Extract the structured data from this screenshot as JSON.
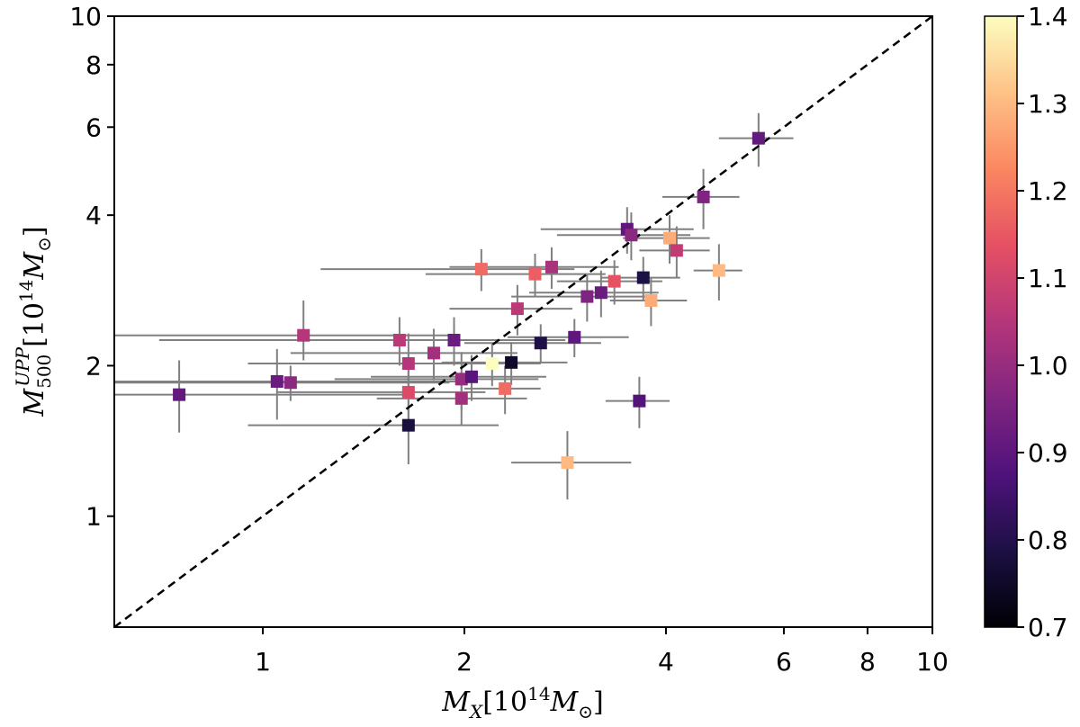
{
  "chart_data": {
    "type": "scatter",
    "xscale": "log",
    "yscale": "log",
    "xlim": [
      0.6,
      10
    ],
    "ylim": [
      0.6,
      10
    ],
    "x_ticks": [
      {
        "value": 1,
        "label": "1"
      },
      {
        "value": 2,
        "label": "2"
      },
      {
        "value": 4,
        "label": "4"
      },
      {
        "value": 6,
        "label": "6"
      },
      {
        "value": 8,
        "label": "8"
      },
      {
        "value": 10,
        "label": "10"
      }
    ],
    "y_ticks": [
      {
        "value": 1,
        "label": "1"
      },
      {
        "value": 2,
        "label": "2"
      },
      {
        "value": 4,
        "label": "4"
      },
      {
        "value": 6,
        "label": "6"
      },
      {
        "value": 8,
        "label": "8"
      },
      {
        "value": 10,
        "label": "10"
      }
    ],
    "xlabel_main": "M",
    "xlabel_sub": "X",
    "xlabel_rest": "[10",
    "xlabel_exp": "14",
    "xlabel_unit": "M",
    "xlabel_unit_sub": "⊙",
    "xlabel_close": "]",
    "ylabel_main": "M",
    "ylabel_sub": "500",
    "ylabel_sup": "UPP",
    "ylabel_rest": "[10",
    "ylabel_exp": "14",
    "ylabel_unit": "M",
    "ylabel_unit_sub": "⊙",
    "ylabel_close": "]",
    "diagonal": {
      "style": "dashed",
      "color": "#000000",
      "label": "1:1"
    },
    "colorbar": {
      "min": 0.7,
      "max": 1.4,
      "colormap": "magma",
      "ticks": [
        "0.7",
        "0.8",
        "0.9",
        "1.0",
        "1.1",
        "1.2",
        "1.3",
        "1.4"
      ]
    },
    "marker_color_errorbar": "#808080",
    "points": [
      {
        "x": 0.75,
        "y": 1.75,
        "xerr": [
          0.15,
          0.9
        ],
        "yerr": [
          0.28,
          0.3
        ],
        "c": 0.91
      },
      {
        "x": 1.05,
        "y": 1.86,
        "xerr": [
          0.5,
          0.9
        ],
        "yerr": [
          0.3,
          0.3
        ],
        "c": 0.92
      },
      {
        "x": 1.1,
        "y": 1.85,
        "xerr": [
          0.5,
          0.8
        ],
        "yerr": [
          0.15,
          0.15
        ],
        "c": 0.98
      },
      {
        "x": 1.15,
        "y": 2.3,
        "xerr": [
          0.55,
          0.8
        ],
        "yerr": [
          0.25,
          0.4
        ],
        "c": 1.05
      },
      {
        "x": 1.6,
        "y": 2.25,
        "xerr": [
          0.9,
          0.8
        ],
        "yerr": [
          0.25,
          0.25
        ],
        "c": 1.06
      },
      {
        "x": 1.65,
        "y": 2.02,
        "xerr": [
          0.7,
          0.7
        ],
        "yerr": [
          0.3,
          0.3
        ],
        "c": 1.05
      },
      {
        "x": 1.65,
        "y": 1.77,
        "xerr": [
          0.6,
          0.5
        ],
        "yerr": [
          0.3,
          0.3
        ],
        "c": 1.12
      },
      {
        "x": 1.65,
        "y": 1.52,
        "xerr": [
          0.7,
          0.6
        ],
        "yerr": [
          0.25,
          0.25
        ],
        "c": 0.78
      },
      {
        "x": 1.8,
        "y": 2.12,
        "xerr": [
          0.7,
          0.6
        ],
        "yerr": [
          0.25,
          0.25
        ],
        "c": 1.02
      },
      {
        "x": 1.93,
        "y": 2.25,
        "xerr": [
          0.8,
          0.9
        ],
        "yerr": [
          0.25,
          0.25
        ],
        "c": 0.92
      },
      {
        "x": 1.98,
        "y": 1.88,
        "xerr": [
          0.7,
          0.6
        ],
        "yerr": [
          0.25,
          0.25
        ],
        "c": 1.0
      },
      {
        "x": 1.98,
        "y": 1.72,
        "xerr": [
          0.5,
          0.5
        ],
        "yerr": [
          0.2,
          0.2
        ],
        "c": 1.02
      },
      {
        "x": 2.05,
        "y": 1.9,
        "xerr": [
          0.6,
          0.6
        ],
        "yerr": [
          0.2,
          0.2
        ],
        "c": 0.89
      },
      {
        "x": 2.12,
        "y": 3.12,
        "xerr": [
          0.9,
          0.8
        ],
        "yerr": [
          0.3,
          0.3
        ],
        "c": 1.18
      },
      {
        "x": 2.2,
        "y": 2.02,
        "xerr": [
          0.4,
          0.4
        ],
        "yerr": [
          0.2,
          0.2
        ],
        "c": 1.4
      },
      {
        "x": 2.3,
        "y": 1.8,
        "xerr": [
          0.3,
          0.3
        ],
        "yerr": [
          0.2,
          0.2
        ],
        "c": 1.18
      },
      {
        "x": 2.35,
        "y": 2.03,
        "xerr": [
          0.5,
          0.5
        ],
        "yerr": [
          0.2,
          0.2
        ],
        "c": 0.75
      },
      {
        "x": 2.4,
        "y": 2.6,
        "xerr": [
          0.5,
          0.5
        ],
        "yerr": [
          0.3,
          0.3
        ],
        "c": 1.06
      },
      {
        "x": 2.55,
        "y": 3.05,
        "xerr": [
          0.8,
          0.7
        ],
        "yerr": [
          0.3,
          0.3
        ],
        "c": 1.16
      },
      {
        "x": 2.6,
        "y": 2.22,
        "xerr": [
          0.6,
          0.6
        ],
        "yerr": [
          0.2,
          0.2
        ],
        "c": 0.79
      },
      {
        "x": 2.7,
        "y": 3.15,
        "xerr": [
          0.8,
          0.7
        ],
        "yerr": [
          0.3,
          0.3
        ],
        "c": 1.03
      },
      {
        "x": 2.85,
        "y": 1.28,
        "xerr": [
          0.5,
          0.7
        ],
        "yerr": [
          0.2,
          0.2
        ],
        "c": 1.3
      },
      {
        "x": 2.92,
        "y": 2.28,
        "xerr": [
          0.6,
          0.6
        ],
        "yerr": [
          0.2,
          0.2
        ],
        "c": 0.9
      },
      {
        "x": 3.05,
        "y": 2.75,
        "xerr": [
          0.7,
          0.7
        ],
        "yerr": [
          0.3,
          0.3
        ],
        "c": 0.96
      },
      {
        "x": 3.2,
        "y": 2.8,
        "xerr": [
          0.7,
          0.7
        ],
        "yerr": [
          0.3,
          0.3
        ],
        "c": 0.92
      },
      {
        "x": 3.35,
        "y": 2.95,
        "xerr": [
          0.6,
          0.6
        ],
        "yerr": [
          0.3,
          0.3
        ],
        "c": 1.14
      },
      {
        "x": 3.5,
        "y": 3.75,
        "xerr": [
          0.9,
          0.9
        ],
        "yerr": [
          0.4,
          0.4
        ],
        "c": 0.9
      },
      {
        "x": 3.55,
        "y": 3.65,
        "xerr": [
          0.8,
          0.8
        ],
        "yerr": [
          0.4,
          0.4
        ],
        "c": 0.98
      },
      {
        "x": 3.65,
        "y": 1.7,
        "xerr": [
          0.4,
          0.4
        ],
        "yerr": [
          0.2,
          0.2
        ],
        "c": 0.88
      },
      {
        "x": 3.7,
        "y": 3.0,
        "xerr": [
          0.5,
          0.5
        ],
        "yerr": [
          0.3,
          0.3
        ],
        "c": 0.79
      },
      {
        "x": 3.8,
        "y": 2.7,
        "xerr": [
          0.5,
          0.5
        ],
        "yerr": [
          0.3,
          0.3
        ],
        "c": 1.28
      },
      {
        "x": 4.05,
        "y": 3.6,
        "xerr": [
          0.6,
          0.6
        ],
        "yerr": [
          0.4,
          0.4
        ],
        "c": 1.28
      },
      {
        "x": 4.15,
        "y": 3.4,
        "xerr": [
          0.5,
          0.5
        ],
        "yerr": [
          0.4,
          0.4
        ],
        "c": 1.07
      },
      {
        "x": 4.55,
        "y": 4.35,
        "xerr": [
          0.6,
          0.6
        ],
        "yerr": [
          0.6,
          0.6
        ],
        "c": 0.96
      },
      {
        "x": 4.8,
        "y": 3.1,
        "xerr": [
          0.4,
          0.4
        ],
        "yerr": [
          0.4,
          0.4
        ],
        "c": 1.3
      },
      {
        "x": 5.5,
        "y": 5.7,
        "xerr": [
          0.7,
          0.7
        ],
        "yerr": [
          0.7,
          0.7
        ],
        "c": 0.91
      }
    ]
  }
}
